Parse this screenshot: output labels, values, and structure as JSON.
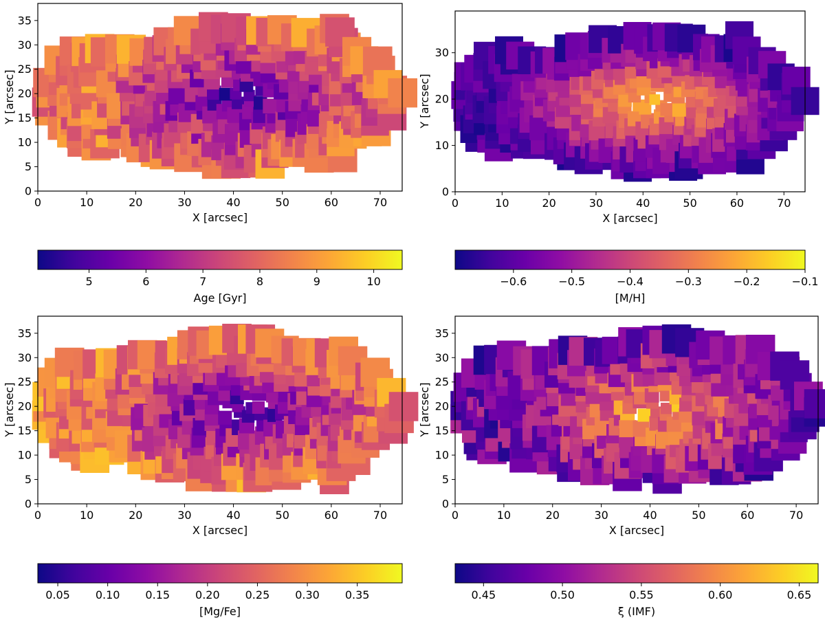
{
  "palette": [
    "#0d0887",
    "#41049d",
    "#6a00a8",
    "#8f0da4",
    "#b12a90",
    "#cc4778",
    "#e16462",
    "#f2844b",
    "#fca636",
    "#fcce25",
    "#f0f921"
  ],
  "chart_data": [
    {
      "type": "heatmap",
      "xlabel": "X [arcsec]",
      "ylabel": "Y [arcsec]",
      "xlim": [
        0,
        74.5
      ],
      "ylim": [
        0,
        38.5
      ],
      "xticks": [
        "0",
        "10",
        "20",
        "30",
        "40",
        "50",
        "60",
        "70"
      ],
      "yticks": [
        "0",
        "5",
        "10",
        "15",
        "20",
        "25",
        "30",
        "35"
      ],
      "colorbar": {
        "label": "Age [Gyr]",
        "range": [
          4.1,
          10.5
        ],
        "ticks": [
          "5",
          "6",
          "7",
          "8",
          "9",
          "10"
        ],
        "tick_values": [
          5,
          6,
          7,
          8,
          9,
          10
        ]
      },
      "trend": "younger center (~4.5 Gyr), older outskirts (~7-9 Gyr)"
    },
    {
      "type": "heatmap",
      "xlabel": "X [arcsec]",
      "ylabel": "Y [arcsec]",
      "xlim": [
        0,
        74.5
      ],
      "ylim": [
        0,
        39
      ],
      "xticks": [
        "0",
        "10",
        "20",
        "30",
        "40",
        "50",
        "60",
        "70"
      ],
      "yticks": [
        "0",
        "10",
        "20",
        "30"
      ],
      "colorbar": {
        "label": "[M/H]",
        "range": [
          -0.7,
          -0.1
        ],
        "ticks": [
          "−0.6",
          "−0.5",
          "−0.4",
          "−0.3",
          "−0.2",
          "−0.1"
        ],
        "tick_values": [
          -0.6,
          -0.5,
          -0.4,
          -0.3,
          -0.2,
          -0.1
        ]
      },
      "trend": "metal-rich center (~-0.2), metal-poor outskirts (~-0.6)"
    },
    {
      "type": "heatmap",
      "xlabel": "X [arcsec]",
      "ylabel": "Y [arcsec]",
      "xlim": [
        0,
        74.5
      ],
      "ylim": [
        0,
        38.5
      ],
      "xticks": [
        "0",
        "10",
        "20",
        "30",
        "40",
        "50",
        "60",
        "70"
      ],
      "yticks": [
        "0",
        "5",
        "10",
        "15",
        "20",
        "25",
        "30",
        "35"
      ],
      "colorbar": {
        "label": "[Mg/Fe]",
        "range": [
          0.03,
          0.395
        ],
        "ticks": [
          "0.05",
          "0.10",
          "0.15",
          "0.20",
          "0.25",
          "0.30",
          "0.35"
        ],
        "tick_values": [
          0.05,
          0.1,
          0.15,
          0.2,
          0.25,
          0.3,
          0.35
        ]
      },
      "trend": "low center (~0.08), higher outskirts (~0.2-0.3)"
    },
    {
      "type": "heatmap",
      "xlabel": "X [arcsec]",
      "ylabel": "Y [arcsec]",
      "xlim": [
        0,
        74.5
      ],
      "ylim": [
        0,
        38.5
      ],
      "xticks": [
        "0",
        "10",
        "20",
        "30",
        "40",
        "50",
        "60",
        "70"
      ],
      "yticks": [
        "0",
        "5",
        "10",
        "15",
        "20",
        "25",
        "30",
        "35"
      ],
      "colorbar": {
        "label": "ξ (IMF)",
        "range": [
          0.432,
          0.662
        ],
        "ticks": [
          "0.45",
          "0.50",
          "0.55",
          "0.60",
          "0.65"
        ],
        "tick_values": [
          0.45,
          0.5,
          0.55,
          0.6,
          0.65
        ]
      },
      "trend": "high center (~0.58), low outskirts (~0.47)"
    }
  ]
}
